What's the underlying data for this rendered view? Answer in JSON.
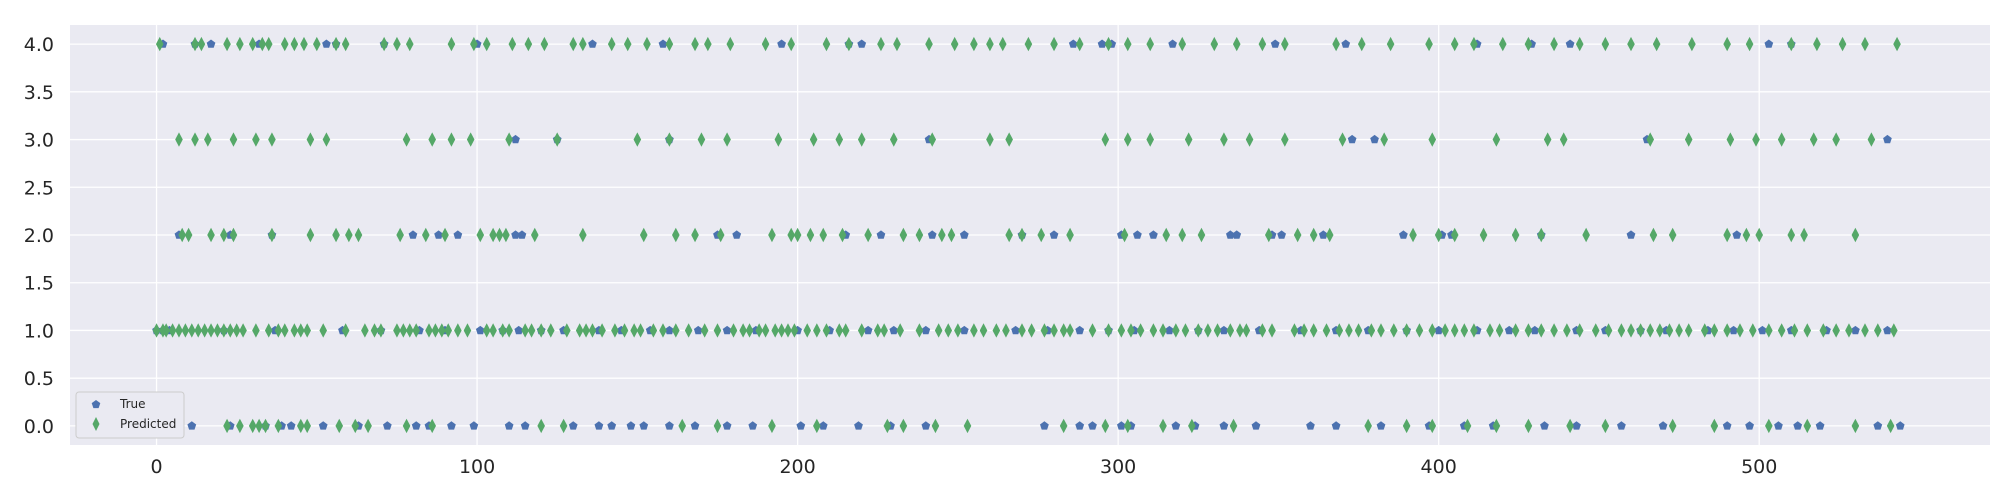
{
  "chart_data": {
    "type": "scatter",
    "title": "",
    "xlabel": "",
    "ylabel": "",
    "xlim": [
      -27,
      572
    ],
    "ylim": [
      -0.2,
      4.2
    ],
    "xticks": [
      0,
      100,
      200,
      300,
      400,
      500
    ],
    "yticks": [
      0.0,
      0.5,
      1.0,
      1.5,
      2.0,
      2.5,
      3.0,
      3.5,
      4.0
    ],
    "xtick_labels": [
      "0",
      "100",
      "200",
      "300",
      "400",
      "500"
    ],
    "ytick_labels": [
      "0.0",
      "0.5",
      "1.0",
      "1.5",
      "2.0",
      "2.5",
      "3.0",
      "3.5",
      "4.0"
    ],
    "grid": true,
    "background": "#eaeaf2",
    "legend": {
      "placement": "lower-left",
      "entries": [
        "True",
        "Predicted"
      ]
    },
    "series": [
      {
        "name": "True",
        "marker": "pentagon",
        "color": "#4c72b0",
        "points": {
          "0": [
            11,
            23,
            34,
            39,
            42,
            52,
            63,
            72,
            81,
            85,
            92,
            99,
            110,
            115,
            130,
            138,
            142,
            148,
            152,
            160,
            168,
            178,
            186,
            201,
            208,
            219,
            229,
            240,
            277,
            288,
            292,
            301,
            304,
            318,
            324,
            333,
            343,
            360,
            368,
            382,
            397,
            408,
            417,
            433,
            443,
            457,
            470,
            490,
            497,
            506,
            512,
            519,
            537,
            544
          ],
          "1": [
            0,
            2,
            4,
            21,
            37,
            58,
            70,
            82,
            90,
            101,
            108,
            113,
            120,
            127,
            138,
            145,
            154,
            160,
            169,
            178,
            187,
            200,
            210,
            222,
            230,
            240,
            252,
            268,
            278,
            288,
            297,
            305,
            316,
            325,
            333,
            344,
            357,
            368,
            378,
            390,
            400,
            412,
            422,
            430,
            443,
            452,
            463,
            471,
            484,
            492,
            501,
            510,
            521,
            530,
            540
          ],
          "2": [
            7,
            23,
            36,
            80,
            88,
            94,
            112,
            114,
            175,
            181,
            215,
            226,
            242,
            252,
            270,
            280,
            301,
            306,
            311,
            335,
            337,
            348,
            351,
            364,
            389,
            401,
            404,
            432,
            460,
            493
          ],
          "3": [
            112,
            125,
            160,
            241,
            373,
            380,
            465,
            540
          ],
          "4": [
            2,
            12,
            17,
            32,
            53,
            56,
            71,
            100,
            136,
            158,
            195,
            216,
            220,
            286,
            295,
            298,
            317,
            349,
            371,
            412,
            429,
            441,
            503,
            510
          ]
        }
      },
      {
        "name": "Predicted",
        "marker": "thin_diamond",
        "color": "#55a868",
        "points": {
          "0": [
            22,
            26,
            30,
            32,
            34,
            38,
            45,
            47,
            57,
            62,
            66,
            78,
            86,
            120,
            127,
            164,
            175,
            192,
            206,
            228,
            233,
            243,
            253,
            283,
            296,
            303,
            314,
            323,
            336,
            378,
            390,
            398,
            409,
            418,
            428,
            441,
            452,
            473,
            486,
            503,
            515,
            530,
            541
          ],
          "1": [
            0,
            2,
            3,
            5,
            7,
            9,
            11,
            13,
            15,
            17,
            19,
            21,
            23,
            25,
            27,
            31,
            35,
            38,
            40,
            43,
            45,
            47,
            52,
            59,
            65,
            68,
            70,
            75,
            77,
            79,
            81,
            85,
            87,
            89,
            91,
            94,
            97,
            103,
            105,
            108,
            110,
            115,
            117,
            120,
            123,
            128,
            132,
            134,
            136,
            139,
            143,
            146,
            149,
            151,
            155,
            158,
            162,
            166,
            171,
            175,
            180,
            183,
            185,
            188,
            190,
            193,
            195,
            197,
            199,
            203,
            206,
            209,
            213,
            215,
            220,
            225,
            227,
            232,
            238,
            244,
            247,
            250,
            255,
            258,
            262,
            265,
            270,
            273,
            277,
            280,
            283,
            285,
            292,
            297,
            301,
            304,
            307,
            311,
            314,
            318,
            321,
            325,
            328,
            331,
            335,
            338,
            340,
            345,
            348,
            355,
            358,
            361,
            365,
            369,
            372,
            375,
            379,
            382,
            386,
            390,
            394,
            398,
            402,
            405,
            408,
            411,
            416,
            419,
            424,
            428,
            432,
            436,
            440,
            444,
            449,
            453,
            457,
            460,
            463,
            466,
            469,
            472,
            475,
            478,
            483,
            486,
            490,
            494,
            498,
            503,
            507,
            511,
            515,
            520,
            524,
            528,
            533,
            537,
            542
          ],
          "2": [
            8,
            10,
            17,
            21,
            24,
            36,
            48,
            56,
            60,
            63,
            76,
            84,
            90,
            101,
            105,
            107,
            109,
            118,
            133,
            152,
            162,
            168,
            176,
            192,
            198,
            200,
            204,
            208,
            214,
            222,
            233,
            238,
            245,
            248,
            266,
            270,
            276,
            285,
            302,
            315,
            320,
            326,
            347,
            356,
            361,
            366,
            392,
            400,
            405,
            414,
            424,
            432,
            446,
            467,
            473,
            490,
            496,
            500,
            510,
            514,
            530
          ],
          "3": [
            7,
            12,
            16,
            24,
            31,
            36,
            48,
            53,
            78,
            86,
            92,
            98,
            110,
            125,
            150,
            160,
            170,
            178,
            194,
            205,
            213,
            220,
            230,
            242,
            260,
            266,
            296,
            303,
            310,
            322,
            333,
            341,
            352,
            370,
            383,
            398,
            418,
            434,
            439,
            466,
            478,
            491,
            499,
            507,
            517,
            524,
            535
          ],
          "4": [
            1,
            12,
            14,
            22,
            26,
            30,
            33,
            35,
            40,
            43,
            46,
            50,
            56,
            59,
            71,
            75,
            79,
            92,
            99,
            103,
            111,
            116,
            121,
            130,
            133,
            142,
            147,
            153,
            160,
            168,
            172,
            179,
            190,
            198,
            209,
            216,
            226,
            231,
            241,
            249,
            255,
            260,
            264,
            272,
            280,
            288,
            297,
            303,
            310,
            320,
            330,
            337,
            345,
            352,
            368,
            376,
            385,
            397,
            405,
            411,
            420,
            428,
            436,
            444,
            452,
            460,
            468,
            479,
            490,
            497,
            510,
            518,
            526,
            533,
            543
          ]
        }
      }
    ]
  }
}
